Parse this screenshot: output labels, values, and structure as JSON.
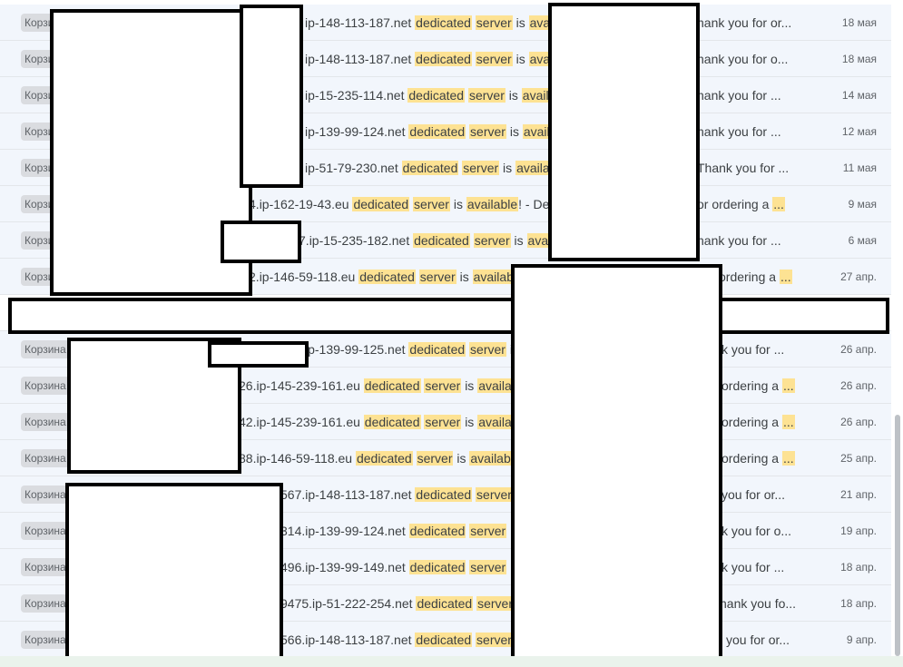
{
  "emails": [
    {
      "tag": "Корзина",
      "prefix": "",
      "host": "ip-148-113-187.net",
      "tail": "hank you for or...",
      "date": "18 мая"
    },
    {
      "tag": "Корзина",
      "prefix": "",
      "host": "ip-148-113-187.net",
      "tail": "hank you for o...",
      "date": "18 мая"
    },
    {
      "tag": "Корзина",
      "prefix": "",
      "host": "ip-15-235-114.net",
      "tail": "hank you for ...",
      "date": "14 мая"
    },
    {
      "tag": "Корзина",
      "prefix": "",
      "host": "ip-139-99-124.net",
      "tail": "hank you for ...",
      "date": "12 мая"
    },
    {
      "tag": "Корзина",
      "prefix": "",
      "host": "ip-51-79-230.net",
      "tail": "Thank you for ...",
      "date": "11 мая"
    },
    {
      "tag": "Корзина",
      "prefix": "4.",
      "host": "ip-162-19-43.eu",
      "tail": "or ordering a",
      "date": "9 мая"
    },
    {
      "tag": "Корзина",
      "prefix": "7.",
      "host": "ip-15-235-182.net",
      "tail": "hank you for ...",
      "date": "6 мая"
    },
    {
      "tag": "Корзина",
      "prefix": "2.",
      "host": "ip-146-59-118.eu",
      "tail": "ordering a",
      "date": "27 апр."
    },
    {
      "tag": "Корзина",
      "prefix": "",
      "host": "ip-139-99-125.net",
      "tail": "k you for ...",
      "date": "26 апр."
    },
    {
      "tag": "Корзина",
      "prefix": "26.",
      "host": "ip-145-239-161.eu",
      "tail": "ordering a",
      "date": "26 апр."
    },
    {
      "tag": "Корзина",
      "prefix": "42.",
      "host": "ip-145-239-161.eu",
      "tail": "ordering a",
      "date": "26 апр."
    },
    {
      "tag": "Корзина",
      "prefix": "88.",
      "host": "ip-146-59-118.eu",
      "tail": "ordering a",
      "date": "25 апр."
    },
    {
      "tag": "Корзина",
      "prefix": "567.",
      "host": "ip-148-113-187.net",
      "tail": "you for or...",
      "date": "21 апр."
    },
    {
      "tag": "Корзина",
      "prefix": "314.",
      "host": "ip-139-99-124.net",
      "tail": "k you for o...",
      "date": "19 апр."
    },
    {
      "tag": "Корзина",
      "prefix": "496.",
      "host": "ip-139-99-149.net",
      "tail": "k you for ...",
      "date": "18 апр."
    },
    {
      "tag": "Корзина",
      "prefix": "9475.",
      "host": "ip-51-222-254.net",
      "tail": "hank you fo...",
      "date": "18 апр."
    },
    {
      "tag": "Корзина",
      "prefix": "566.",
      "host": "ip-148-113-187.net",
      "tail": "you for or...",
      "date": "9 апр."
    }
  ],
  "words": {
    "dedicated": "dedicated",
    "server": "server",
    "is": "is",
    "available": "available",
    "excl": "!",
    "dash": "- De",
    "ellipsis": "..."
  },
  "colors": {
    "row_bg": "#f2f6fc",
    "highlight": "#fde293",
    "tag_bg": "#dadce0",
    "redaction_border": "#000000"
  }
}
